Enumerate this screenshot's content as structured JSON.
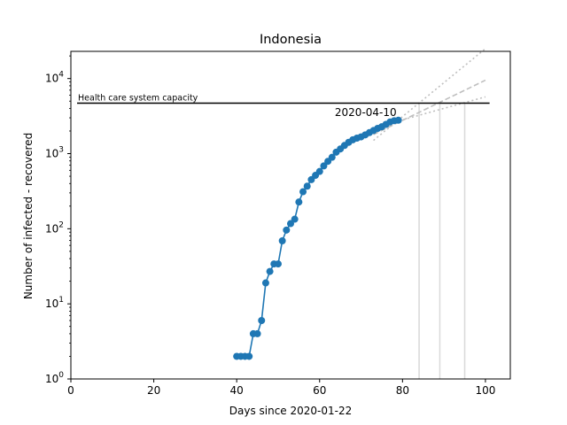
{
  "chart_data": {
    "type": "line",
    "title": "Indonesia",
    "xlabel": "Days since 2020-01-22",
    "ylabel": "Number of infected - recovered",
    "xlim": [
      0,
      106
    ],
    "ylim": [
      1,
      23000
    ],
    "y_scale": "log",
    "grid": false,
    "x_ticks": [
      {
        "value": 0,
        "label": "0"
      },
      {
        "value": 20,
        "label": "20"
      },
      {
        "value": 40,
        "label": "40"
      },
      {
        "value": 60,
        "label": "60"
      },
      {
        "value": 80,
        "label": "80"
      },
      {
        "value": 100,
        "label": "100"
      }
    ],
    "y_ticks": [
      {
        "value": 1,
        "base": "10",
        "exp": "0"
      },
      {
        "value": 10,
        "base": "10",
        "exp": "1"
      },
      {
        "value": 100,
        "base": "10",
        "exp": "2"
      },
      {
        "value": 1000,
        "base": "10",
        "exp": "3"
      },
      {
        "value": 10000,
        "base": "10",
        "exp": "4"
      }
    ],
    "series": [
      {
        "color": "#1f77b4",
        "x": [
          40,
          41,
          42,
          43,
          44,
          45,
          46,
          47,
          48,
          49,
          50,
          51,
          52,
          53,
          54,
          55,
          56,
          57,
          58,
          59,
          60,
          61,
          62,
          63,
          64,
          65,
          66,
          67,
          68,
          69,
          70,
          71,
          72,
          73,
          74,
          75,
          76,
          77,
          78,
          79
        ],
        "y": [
          2,
          2,
          2,
          2,
          4,
          4,
          6,
          19,
          27,
          34,
          34,
          69,
          96,
          117,
          134,
          227,
          311,
          369,
          450,
          514,
          579,
          686,
          790,
          893,
          1046,
          1155,
          1285,
          1414,
          1528,
          1608,
          1671,
          1777,
          1905,
          2031,
          2168,
          2281,
          2451,
          2642,
          2745,
          2785
        ]
      }
    ],
    "capacity": {
      "value": 4700,
      "label": "Health care system capacity",
      "x_start": 1.5,
      "x_end": 101,
      "color": "#000000"
    },
    "date_annotation": {
      "text": "2020-04-10",
      "x": 79,
      "y": 2785
    },
    "projections": [
      {
        "style": "dotted",
        "x": [
          73,
          100
        ],
        "y": [
          1500,
          25000
        ],
        "color": "#bfbfbf"
      },
      {
        "style": "dashed",
        "x": [
          73,
          100
        ],
        "y": [
          1800,
          9500
        ],
        "color": "#bfbfbf"
      },
      {
        "style": "dotted",
        "x": [
          73,
          100
        ],
        "y": [
          2200,
          5700
        ],
        "color": "#bfbfbf"
      }
    ],
    "crossing_lines": [
      {
        "x": 84,
        "color": "#d9d9d9"
      },
      {
        "x": 89,
        "color": "#d9d9d9"
      },
      {
        "x": 95,
        "color": "#d9d9d9"
      }
    ]
  }
}
